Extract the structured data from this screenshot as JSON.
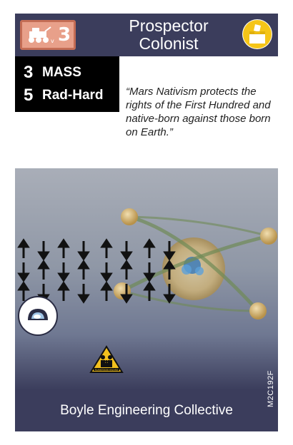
{
  "card": {
    "title_line1": "Prospector",
    "title_line2": "Colonist",
    "type_cost": "3",
    "stats": [
      {
        "value": "3",
        "label": "MASS"
      },
      {
        "value": "5",
        "label": "Rad-Hard"
      }
    ],
    "quote": "“Mars Nativism protects the rights of the First Hundred and native-born against those born on Earth.”",
    "corporation": "Boyle Engineering Collective",
    "card_code": "M2C192F",
    "hazard_label": "PLANETSIDE HAZARD"
  },
  "icons": {
    "type_icon": "rover-icon",
    "side_icon": "ballot-box-icon",
    "helmet_icon": "helmet-icon",
    "hazard_icon": "hazard-family-icon"
  },
  "colors": {
    "header": "#3b3d5c",
    "badge": "#e8a08a",
    "badge_border": "#c46d55",
    "ballot": "#f5c518",
    "hazard_yellow": "#f2c01e"
  }
}
